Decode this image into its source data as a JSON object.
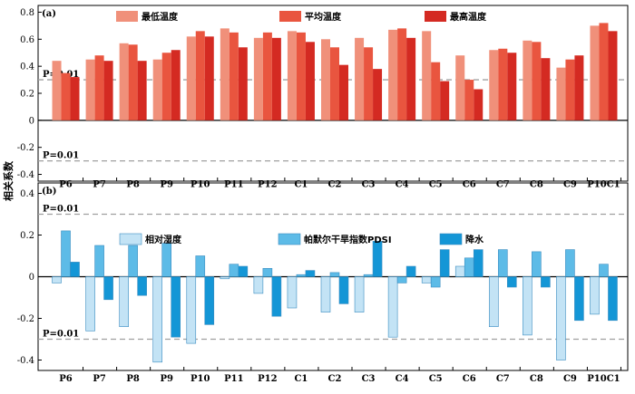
{
  "chart_data": [
    {
      "type": "bar",
      "panel_label": "(a)",
      "categories": [
        "P6",
        "P7",
        "P8",
        "P9",
        "P10",
        "P11",
        "P12",
        "C1",
        "C2",
        "C3",
        "C4",
        "C5",
        "C6",
        "C7",
        "C8",
        "C9",
        "P10C1"
      ],
      "series": [
        {
          "name": "最低温度",
          "color": "#f0907a",
          "values": [
            0.44,
            0.45,
            0.57,
            0.45,
            0.62,
            0.68,
            0.61,
            0.66,
            0.6,
            0.61,
            0.67,
            0.66,
            0.48,
            0.52,
            0.59,
            0.39,
            0.7
          ]
        },
        {
          "name": "平均温度",
          "color": "#e9553f",
          "values": [
            0.35,
            0.48,
            0.56,
            0.5,
            0.66,
            0.65,
            0.65,
            0.65,
            0.54,
            0.54,
            0.68,
            0.43,
            0.3,
            0.53,
            0.58,
            0.45,
            0.72
          ]
        },
        {
          "name": "最高温度",
          "color": "#d42a22",
          "values": [
            0.32,
            0.44,
            0.44,
            0.52,
            0.62,
            0.54,
            0.61,
            0.58,
            0.41,
            0.38,
            0.61,
            0.29,
            0.23,
            0.5,
            0.46,
            0.48,
            0.66
          ]
        }
      ],
      "ylim": [
        -0.45,
        0.85
      ],
      "yticks": [
        "0.8",
        "0.6",
        "0.4",
        "0.2",
        "0",
        "-0.2",
        "-0.4"
      ],
      "p_lines": [
        {
          "value": 0.3,
          "label": "P=0.01"
        },
        {
          "value": -0.3,
          "label": "P=0.01"
        }
      ],
      "legend_position": "top"
    },
    {
      "type": "bar",
      "panel_label": "(b)",
      "categories": [
        "P6",
        "P7",
        "P8",
        "P9",
        "P10",
        "P11",
        "P12",
        "C1",
        "C2",
        "C3",
        "C4",
        "C5",
        "C6",
        "C7",
        "C8",
        "C9",
        "P10C1"
      ],
      "series": [
        {
          "name": "相对湿度",
          "color": "#c3e3f5",
          "values": [
            -0.03,
            -0.26,
            -0.24,
            -0.41,
            -0.32,
            -0.01,
            -0.08,
            -0.15,
            -0.17,
            -0.17,
            -0.29,
            -0.03,
            0.05,
            -0.24,
            -0.28,
            -0.4,
            -0.18
          ]
        },
        {
          "name": "帕默尔干旱指数PDSI",
          "color": "#5dbbe7",
          "values": [
            0.22,
            0.15,
            0.15,
            0.16,
            0.1,
            0.06,
            0.04,
            0.01,
            0.02,
            0.01,
            -0.03,
            -0.05,
            0.09,
            0.13,
            0.12,
            0.13,
            0.06
          ]
        },
        {
          "name": "降水",
          "color": "#1496d6",
          "values": [
            0.07,
            -0.11,
            -0.09,
            -0.29,
            -0.23,
            0.05,
            -0.19,
            0.03,
            -0.13,
            0.17,
            0.05,
            0.13,
            0.13,
            -0.05,
            -0.05,
            -0.21,
            -0.21
          ]
        }
      ],
      "ylim": [
        -0.45,
        0.45
      ],
      "yticks": [
        "0.4",
        "0.2",
        "0",
        "-0.2",
        "-0.4"
      ],
      "p_lines": [
        {
          "value": 0.3,
          "label": "P=0.01"
        },
        {
          "value": -0.3,
          "label": "P=0.01"
        }
      ],
      "legend_position": "top"
    }
  ],
  "ylabel": "相关系数"
}
